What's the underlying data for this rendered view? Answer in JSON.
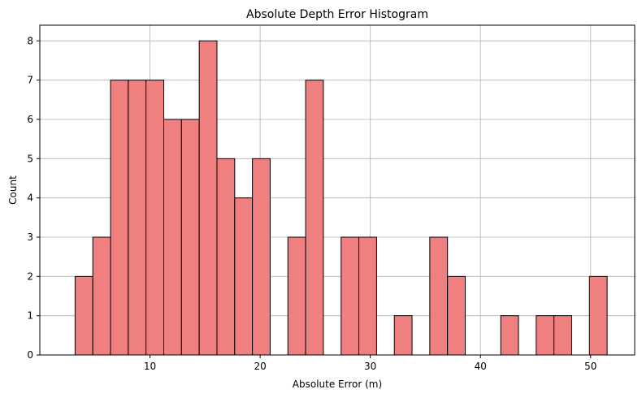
{
  "chart_data": {
    "type": "bar",
    "title": "Absolute Depth Error Histogram",
    "xlabel": "Absolute Error (m)",
    "ylabel": "Count",
    "bin_start": 3.2,
    "bin_width": 1.61,
    "counts": [
      2,
      3,
      7,
      7,
      7,
      6,
      6,
      8,
      5,
      4,
      5,
      0,
      3,
      7,
      0,
      3,
      3,
      0,
      1,
      0,
      3,
      2,
      0,
      0,
      1,
      0,
      1,
      1,
      0,
      2
    ],
    "xlim": [
      0,
      54
    ],
    "ylim": [
      0,
      8.4
    ],
    "xticks": [
      10,
      20,
      30,
      40,
      50
    ],
    "yticks": [
      0,
      1,
      2,
      3,
      4,
      5,
      6,
      7,
      8
    ],
    "grid": true,
    "bar_color": "#f08080",
    "edge_color": "#000000",
    "grid_color": "#b0b0b0"
  }
}
